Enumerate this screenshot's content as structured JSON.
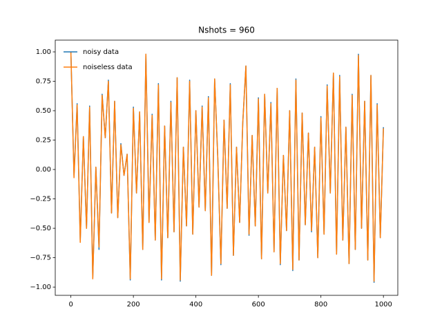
{
  "chart_data": {
    "type": "line",
    "title": "Nshots = 960",
    "x": [
      0,
      10,
      20,
      30,
      40,
      50,
      60,
      70,
      80,
      90,
      100,
      110,
      120,
      130,
      140,
      150,
      160,
      170,
      180,
      190,
      200,
      210,
      220,
      230,
      240,
      250,
      260,
      270,
      280,
      290,
      300,
      310,
      320,
      330,
      340,
      350,
      360,
      370,
      380,
      390,
      400,
      410,
      420,
      430,
      440,
      450,
      460,
      470,
      480,
      490,
      500,
      510,
      520,
      530,
      540,
      550,
      560,
      570,
      580,
      590,
      600,
      610,
      620,
      630,
      640,
      650,
      660,
      670,
      680,
      690,
      700,
      710,
      720,
      730,
      740,
      750,
      760,
      770,
      780,
      790,
      800,
      810,
      820,
      830,
      840,
      850,
      860,
      870,
      880,
      890,
      900,
      910,
      920,
      930,
      940,
      950,
      960,
      970,
      980,
      990,
      1000
    ],
    "series": [
      {
        "name": "noisy data",
        "color": "#1f77b4",
        "values": [
          1.0,
          -0.05,
          0.56,
          -0.6,
          0.28,
          -0.5,
          0.54,
          -0.92,
          0.02,
          -0.68,
          0.64,
          0.27,
          0.76,
          -0.37,
          0.58,
          -0.41,
          0.22,
          -0.05,
          0.13,
          -0.94,
          0.53,
          -0.2,
          0.49,
          -0.68,
          0.98,
          -0.45,
          0.47,
          -0.6,
          0.73,
          -0.94,
          0.37,
          -0.58,
          0.58,
          -0.53,
          0.78,
          -0.95,
          0.19,
          -0.48,
          0.76,
          -0.55,
          0.5,
          -0.32,
          0.54,
          -0.35,
          0.62,
          -0.9,
          0.77,
          0.1,
          -0.81,
          0.42,
          -0.33,
          0.73,
          -0.73,
          0.19,
          -0.45,
          0.4,
          0.88,
          -0.56,
          0.29,
          -0.48,
          0.61,
          -0.76,
          0.64,
          -0.2,
          0.57,
          -0.7,
          0.69,
          -0.81,
          0.12,
          -0.52,
          0.5,
          -0.86,
          0.77,
          -0.77,
          0.48,
          -0.47,
          0.31,
          -0.53,
          0.19,
          -0.75,
          0.45,
          -0.55,
          0.72,
          -0.2,
          0.82,
          -0.72,
          0.8,
          -0.6,
          0.36,
          -0.8,
          0.64,
          -0.68,
          0.98,
          -0.5,
          0.58,
          -0.77,
          0.8,
          -0.96,
          0.56,
          -0.58,
          0.36
        ]
      },
      {
        "name": "noiseless data",
        "color": "#ff7f0e",
        "values": [
          1.0,
          -0.07,
          0.55,
          -0.62,
          0.28,
          -0.5,
          0.53,
          -0.93,
          0.02,
          -0.66,
          0.63,
          0.27,
          0.75,
          -0.37,
          0.58,
          -0.41,
          0.21,
          -0.05,
          0.13,
          -0.93,
          0.52,
          -0.2,
          0.49,
          -0.68,
          0.98,
          -0.45,
          0.46,
          -0.6,
          0.72,
          -0.93,
          0.37,
          -0.58,
          0.57,
          -0.53,
          0.78,
          -0.94,
          0.19,
          -0.48,
          0.75,
          -0.55,
          0.5,
          -0.32,
          0.53,
          -0.35,
          0.61,
          -0.9,
          0.77,
          0.1,
          -0.8,
          0.42,
          -0.33,
          0.72,
          -0.73,
          0.19,
          -0.45,
          0.4,
          0.88,
          -0.55,
          0.29,
          -0.48,
          0.6,
          -0.76,
          0.64,
          -0.2,
          0.56,
          -0.7,
          0.69,
          -0.8,
          0.12,
          -0.52,
          0.5,
          -0.85,
          0.76,
          -0.77,
          0.48,
          -0.47,
          0.31,
          -0.52,
          0.19,
          -0.75,
          0.44,
          -0.55,
          0.71,
          -0.2,
          0.82,
          -0.72,
          0.79,
          -0.6,
          0.36,
          -0.8,
          0.63,
          -0.68,
          0.97,
          -0.5,
          0.58,
          -0.77,
          0.8,
          -0.95,
          0.55,
          -0.58,
          0.35
        ]
      }
    ],
    "xlim": [
      -50,
      1046
    ],
    "ylim": [
      -1.07,
      1.1
    ],
    "xticks": [
      0,
      200,
      400,
      600,
      800,
      1000
    ],
    "yticks": [
      {
        "value": -1,
        "label": "−1.00"
      },
      {
        "value": -0.75,
        "label": "−0.75"
      },
      {
        "value": -0.5,
        "label": "−0.50"
      },
      {
        "value": -0.25,
        "label": "−0.25"
      },
      {
        "value": 0,
        "label": "0.00"
      },
      {
        "value": 0.25,
        "label": "0.25"
      },
      {
        "value": 0.5,
        "label": "0.50"
      },
      {
        "value": 0.75,
        "label": "0.75"
      },
      {
        "value": 1,
        "label": "1.00"
      }
    ],
    "legend": "upper left",
    "grid": false
  }
}
